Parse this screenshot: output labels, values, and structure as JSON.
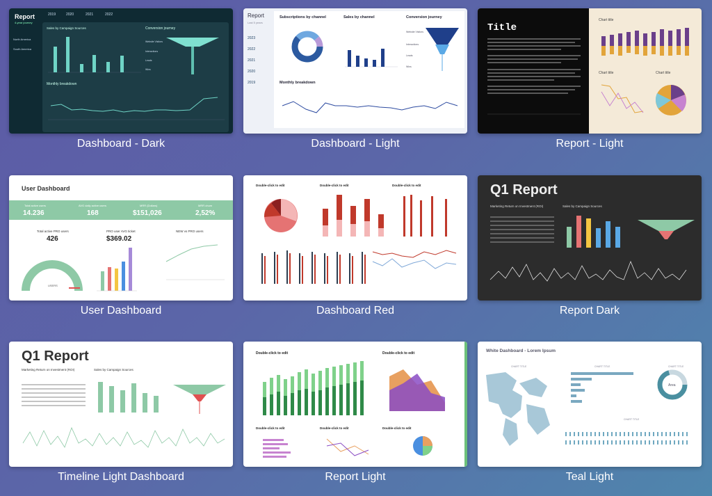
{
  "templates": [
    {
      "id": "dashboard-dark",
      "title": "Dashboard - Dark",
      "heading": "Report",
      "subheading": "4-year journey",
      "years": [
        "2019",
        "2020",
        "2021",
        "2022"
      ],
      "regions": [
        "North America",
        "South America"
      ],
      "panels": [
        "Sales by Campaign Sources",
        "Conversion journey",
        "Monthly breakdown"
      ],
      "funnel_labels": [
        "Website Visitors",
        "Interactions",
        "Leads",
        "Wins"
      ]
    },
    {
      "id": "dashboard-light",
      "title": "Dashboard - Light",
      "heading": "Report",
      "subheading": "Last 5 years",
      "years": [
        "2023",
        "2022",
        "2021",
        "2020",
        "2019"
      ],
      "panels": [
        "Subscriptions by channel",
        "Sales by channel",
        "Conversion journey",
        "Monthly breakdown"
      ],
      "funnel_labels": [
        "Website Visitors",
        "Interactions",
        "Leads",
        "Wins"
      ]
    },
    {
      "id": "report-light",
      "title": "Report - Light",
      "heading": "Title",
      "panels": [
        "Chart title",
        "Chart title",
        "Chart title"
      ]
    },
    {
      "id": "user-dashboard",
      "title": "User Dashboard",
      "heading": "User Dashboard",
      "kpis": [
        {
          "label": "Total active users",
          "value": "14.236"
        },
        {
          "label": "AVG daily active users",
          "value": "168"
        },
        {
          "label": "MRR (Dollars)",
          "value": "$151,026"
        },
        {
          "label": "MRR churn",
          "value": "2,52%"
        }
      ],
      "secondary": [
        {
          "label": "Total active PRO users",
          "value": "426"
        },
        {
          "label": "PRO user AVG ticket",
          "value": "$369.02"
        },
        {
          "label": "NEW vs PRO users",
          "value": ""
        }
      ],
      "gauge_label": "USERS"
    },
    {
      "id": "dashboard-red",
      "title": "Dashboard Red",
      "panels": [
        "Double-click to edit",
        "Double-click to edit",
        "Double-click to edit"
      ]
    },
    {
      "id": "report-dark",
      "title": "Report Dark",
      "heading": "Q1 Report",
      "panels": [
        "Marketing Return on Investment (ROI)",
        "Sales by Campaign Sources"
      ]
    },
    {
      "id": "timeline-light",
      "title": "Timeline Light Dashboard",
      "heading": "Q1 Report",
      "panels": [
        "Marketing Return on Investment (ROI)",
        "Sales by Campaign Sources"
      ]
    },
    {
      "id": "report-light-2",
      "title": "Report Light",
      "panels": [
        "Double-click to edit",
        "Double-click to edit",
        "Double-click to edit",
        "Double-click to edit"
      ]
    },
    {
      "id": "teal-light",
      "title": "Teal Light",
      "heading": "White Dashboard - Lorem Ipsum",
      "panels": [
        "CHART TITLE",
        "CHART TITLE",
        "CHART TITLE",
        "CHART TITLE"
      ],
      "donut_label": "Area"
    }
  ]
}
